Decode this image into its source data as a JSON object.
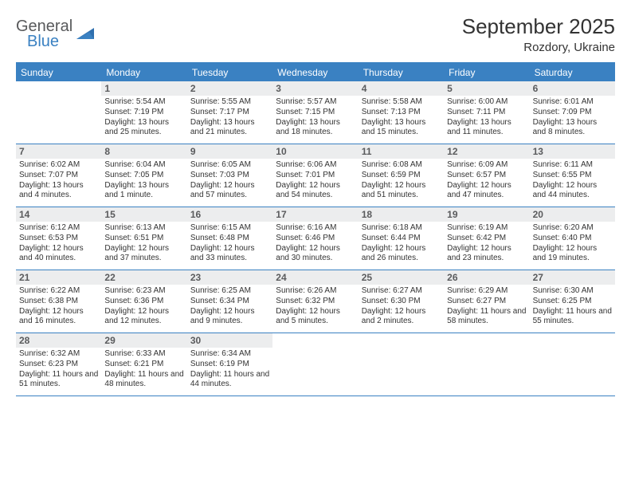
{
  "brand": {
    "general": "General",
    "blue": "Blue"
  },
  "title": "September 2025",
  "location": "Rozdory, Ukraine",
  "colors": {
    "accent": "#3a81c2",
    "dow_bg": "#3a81c2",
    "daynum_bg": "#ecedee",
    "text": "#333333"
  },
  "dow": [
    "Sunday",
    "Monday",
    "Tuesday",
    "Wednesday",
    "Thursday",
    "Friday",
    "Saturday"
  ],
  "weeks": [
    [
      null,
      {
        "n": "1",
        "sr": "5:54 AM",
        "ss": "7:19 PM",
        "dl": "13 hours and 25 minutes."
      },
      {
        "n": "2",
        "sr": "5:55 AM",
        "ss": "7:17 PM",
        "dl": "13 hours and 21 minutes."
      },
      {
        "n": "3",
        "sr": "5:57 AM",
        "ss": "7:15 PM",
        "dl": "13 hours and 18 minutes."
      },
      {
        "n": "4",
        "sr": "5:58 AM",
        "ss": "7:13 PM",
        "dl": "13 hours and 15 minutes."
      },
      {
        "n": "5",
        "sr": "6:00 AM",
        "ss": "7:11 PM",
        "dl": "13 hours and 11 minutes."
      },
      {
        "n": "6",
        "sr": "6:01 AM",
        "ss": "7:09 PM",
        "dl": "13 hours and 8 minutes."
      }
    ],
    [
      {
        "n": "7",
        "sr": "6:02 AM",
        "ss": "7:07 PM",
        "dl": "13 hours and 4 minutes."
      },
      {
        "n": "8",
        "sr": "6:04 AM",
        "ss": "7:05 PM",
        "dl": "13 hours and 1 minute."
      },
      {
        "n": "9",
        "sr": "6:05 AM",
        "ss": "7:03 PM",
        "dl": "12 hours and 57 minutes."
      },
      {
        "n": "10",
        "sr": "6:06 AM",
        "ss": "7:01 PM",
        "dl": "12 hours and 54 minutes."
      },
      {
        "n": "11",
        "sr": "6:08 AM",
        "ss": "6:59 PM",
        "dl": "12 hours and 51 minutes."
      },
      {
        "n": "12",
        "sr": "6:09 AM",
        "ss": "6:57 PM",
        "dl": "12 hours and 47 minutes."
      },
      {
        "n": "13",
        "sr": "6:11 AM",
        "ss": "6:55 PM",
        "dl": "12 hours and 44 minutes."
      }
    ],
    [
      {
        "n": "14",
        "sr": "6:12 AM",
        "ss": "6:53 PM",
        "dl": "12 hours and 40 minutes."
      },
      {
        "n": "15",
        "sr": "6:13 AM",
        "ss": "6:51 PM",
        "dl": "12 hours and 37 minutes."
      },
      {
        "n": "16",
        "sr": "6:15 AM",
        "ss": "6:48 PM",
        "dl": "12 hours and 33 minutes."
      },
      {
        "n": "17",
        "sr": "6:16 AM",
        "ss": "6:46 PM",
        "dl": "12 hours and 30 minutes."
      },
      {
        "n": "18",
        "sr": "6:18 AM",
        "ss": "6:44 PM",
        "dl": "12 hours and 26 minutes."
      },
      {
        "n": "19",
        "sr": "6:19 AM",
        "ss": "6:42 PM",
        "dl": "12 hours and 23 minutes."
      },
      {
        "n": "20",
        "sr": "6:20 AM",
        "ss": "6:40 PM",
        "dl": "12 hours and 19 minutes."
      }
    ],
    [
      {
        "n": "21",
        "sr": "6:22 AM",
        "ss": "6:38 PM",
        "dl": "12 hours and 16 minutes."
      },
      {
        "n": "22",
        "sr": "6:23 AM",
        "ss": "6:36 PM",
        "dl": "12 hours and 12 minutes."
      },
      {
        "n": "23",
        "sr": "6:25 AM",
        "ss": "6:34 PM",
        "dl": "12 hours and 9 minutes."
      },
      {
        "n": "24",
        "sr": "6:26 AM",
        "ss": "6:32 PM",
        "dl": "12 hours and 5 minutes."
      },
      {
        "n": "25",
        "sr": "6:27 AM",
        "ss": "6:30 PM",
        "dl": "12 hours and 2 minutes."
      },
      {
        "n": "26",
        "sr": "6:29 AM",
        "ss": "6:27 PM",
        "dl": "11 hours and 58 minutes."
      },
      {
        "n": "27",
        "sr": "6:30 AM",
        "ss": "6:25 PM",
        "dl": "11 hours and 55 minutes."
      }
    ],
    [
      {
        "n": "28",
        "sr": "6:32 AM",
        "ss": "6:23 PM",
        "dl": "11 hours and 51 minutes."
      },
      {
        "n": "29",
        "sr": "6:33 AM",
        "ss": "6:21 PM",
        "dl": "11 hours and 48 minutes."
      },
      {
        "n": "30",
        "sr": "6:34 AM",
        "ss": "6:19 PM",
        "dl": "11 hours and 44 minutes."
      },
      null,
      null,
      null,
      null
    ]
  ],
  "labels": {
    "sunrise": "Sunrise:",
    "sunset": "Sunset:",
    "daylight": "Daylight:"
  }
}
